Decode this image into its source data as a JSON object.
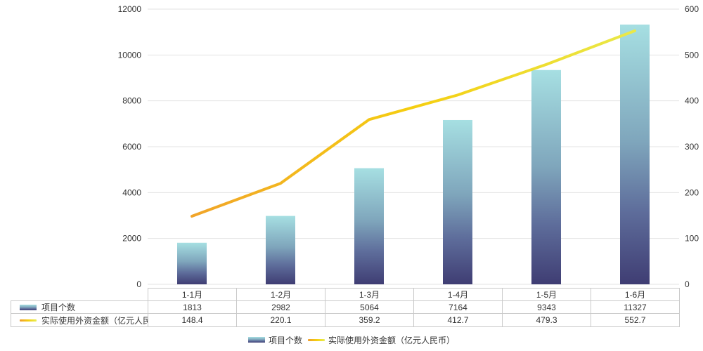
{
  "colors": {
    "bar_gradient": [
      "#a6dfe2",
      "#7fa6bc",
      "#5e6d9b",
      "#3f3d73"
    ],
    "line_gradient": [
      "#f09c2e",
      "#f5ce10",
      "#e7ee54"
    ],
    "gridline": "#e3e3e3",
    "table_border": "#c9c9c9",
    "text": "#333333"
  },
  "chart_data": {
    "type": "bar",
    "subtype": "combo bar+line, dual y-axes",
    "categories": [
      "1-1月",
      "1-2月",
      "1-3月",
      "1-4月",
      "1-5月",
      "1-6月"
    ],
    "series": [
      {
        "name": "项目个数",
        "type": "bar",
        "axis": "left",
        "values": [
          1813,
          2982,
          5064,
          7164,
          9343,
          11327
        ]
      },
      {
        "name": "实际使用外资金额（亿元人民币）",
        "type": "line",
        "axis": "right",
        "values": [
          148.4,
          220.1,
          359.2,
          412.7,
          479.3,
          552.7
        ]
      }
    ],
    "left_axis": {
      "min": 0,
      "max": 12000,
      "tick_step": 2000,
      "ticks": [
        0,
        2000,
        4000,
        6000,
        8000,
        10000,
        12000
      ]
    },
    "right_axis": {
      "min": 0,
      "max": 600,
      "tick_step": 100,
      "ticks": [
        0,
        100,
        200,
        300,
        400,
        500,
        600
      ]
    },
    "grid": true,
    "legend_position": "bottom"
  }
}
